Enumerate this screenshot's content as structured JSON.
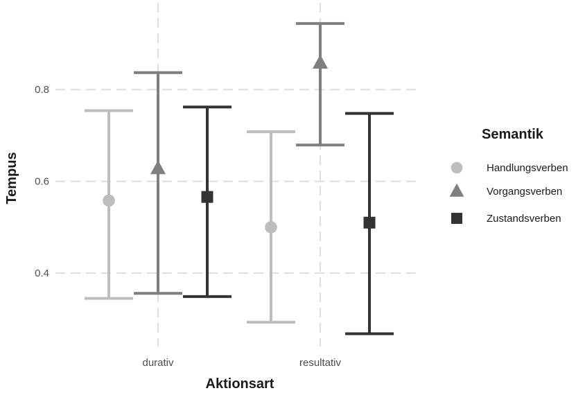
{
  "chart_data": {
    "type": "errorbar",
    "title": "",
    "xlabel": "Aktionsart",
    "ylabel": "Tempus",
    "categories": [
      "durativ",
      "resultativ"
    ],
    "y_ticks": [
      0.4,
      0.6,
      0.8
    ],
    "y_tick_labels": [
      "0.4",
      "0.6",
      "0.8"
    ],
    "ylim": [
      0.24,
      0.98
    ],
    "grid": true,
    "legend": {
      "title": "Semantik",
      "position": "right"
    },
    "series": [
      {
        "name": "Handlungsverben",
        "shape": "circle",
        "color": "#bdbdbd",
        "values": [
          0.558,
          0.5
        ],
        "lower": [
          0.345,
          0.293
        ],
        "upper": [
          0.754,
          0.708
        ]
      },
      {
        "name": "Vorgangsverben",
        "shape": "triangle",
        "color": "#7f7f7f",
        "values": [
          0.628,
          0.858
        ],
        "lower": [
          0.356,
          0.679
        ],
        "upper": [
          0.837,
          0.944
        ]
      },
      {
        "name": "Zustandsverben",
        "shape": "square",
        "color": "#333333",
        "values": [
          0.566,
          0.51
        ],
        "lower": [
          0.349,
          0.268
        ],
        "upper": [
          0.762,
          0.748
        ]
      }
    ]
  }
}
